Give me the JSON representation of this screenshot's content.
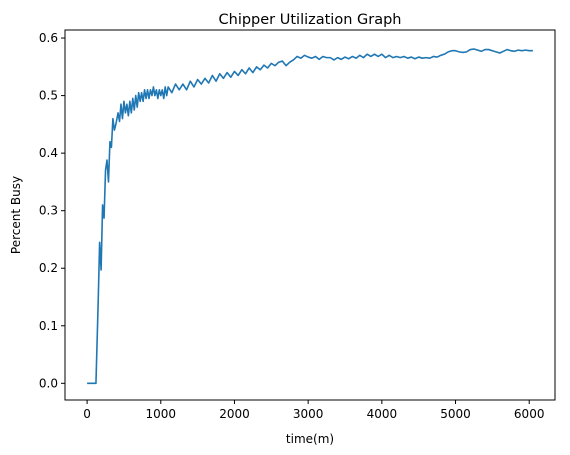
{
  "chart_data": {
    "type": "line",
    "title": "Chipper Utilization Graph",
    "xlabel": "time(m)",
    "ylabel": "Percent Busy",
    "xlim": [
      -300,
      6350
    ],
    "ylim": [
      -0.029,
      0.614
    ],
    "xticks": [
      0,
      1000,
      2000,
      3000,
      4000,
      5000,
      6000
    ],
    "yticks": [
      0.0,
      0.1,
      0.2,
      0.3,
      0.4,
      0.5,
      0.6
    ],
    "xtick_labels": [
      "0",
      "1000",
      "2000",
      "3000",
      "4000",
      "5000",
      "6000"
    ],
    "ytick_labels": [
      "0.0",
      "0.1",
      "0.2",
      "0.3",
      "0.4",
      "0.5",
      "0.6"
    ],
    "grid": false,
    "line_color": "#1f77b4",
    "series": [
      {
        "x": [
          0,
          60,
          120,
          150,
          170,
          190,
          210,
          230,
          250,
          270,
          290,
          310,
          330,
          350,
          370,
          390,
          420,
          440,
          460,
          480,
          500,
          520,
          540,
          560,
          580,
          600,
          620,
          640,
          660,
          680,
          700,
          720,
          740,
          760,
          780,
          800,
          820,
          840,
          860,
          880,
          900,
          920,
          940,
          960,
          980,
          1000,
          1020,
          1040,
          1060,
          1080,
          1100,
          1150,
          1200,
          1250,
          1300,
          1350,
          1400,
          1450,
          1500,
          1550,
          1600,
          1650,
          1700,
          1750,
          1800,
          1850,
          1900,
          1950,
          2000,
          2050,
          2100,
          2150,
          2200,
          2250,
          2300,
          2350,
          2400,
          2450,
          2500,
          2550,
          2600,
          2650,
          2700,
          2750,
          2800,
          2850,
          2900,
          2950,
          3000,
          3050,
          3100,
          3150,
          3200,
          3250,
          3300,
          3350,
          3400,
          3450,
          3500,
          3550,
          3600,
          3650,
          3700,
          3750,
          3800,
          3850,
          3900,
          3950,
          4000,
          4050,
          4100,
          4150,
          4200,
          4250,
          4300,
          4350,
          4400,
          4450,
          4500,
          4550,
          4600,
          4650,
          4700,
          4750,
          4800,
          4850,
          4900,
          4950,
          5000,
          5050,
          5100,
          5150,
          5200,
          5250,
          5300,
          5350,
          5400,
          5450,
          5500,
          5550,
          5600,
          5650,
          5700,
          5750,
          5800,
          5850,
          5900,
          5950,
          6000,
          6050
        ],
        "y": [
          0.0,
          0.0,
          0.0,
          0.14,
          0.245,
          0.197,
          0.31,
          0.287,
          0.37,
          0.388,
          0.35,
          0.42,
          0.41,
          0.46,
          0.44,
          0.45,
          0.47,
          0.455,
          0.485,
          0.46,
          0.49,
          0.47,
          0.485,
          0.465,
          0.49,
          0.47,
          0.495,
          0.475,
          0.5,
          0.48,
          0.505,
          0.49,
          0.505,
          0.49,
          0.51,
          0.495,
          0.51,
          0.495,
          0.51,
          0.5,
          0.515,
          0.5,
          0.51,
          0.495,
          0.51,
          0.5,
          0.51,
          0.495,
          0.515,
          0.5,
          0.515,
          0.505,
          0.52,
          0.51,
          0.52,
          0.51,
          0.525,
          0.515,
          0.528,
          0.52,
          0.53,
          0.522,
          0.535,
          0.525,
          0.538,
          0.53,
          0.54,
          0.532,
          0.542,
          0.535,
          0.545,
          0.538,
          0.548,
          0.54,
          0.55,
          0.545,
          0.553,
          0.548,
          0.556,
          0.552,
          0.558,
          0.56,
          0.552,
          0.558,
          0.562,
          0.568,
          0.565,
          0.57,
          0.567,
          0.565,
          0.568,
          0.563,
          0.568,
          0.566,
          0.566,
          0.562,
          0.566,
          0.563,
          0.567,
          0.564,
          0.568,
          0.565,
          0.57,
          0.566,
          0.572,
          0.568,
          0.572,
          0.568,
          0.572,
          0.566,
          0.57,
          0.566,
          0.568,
          0.566,
          0.568,
          0.565,
          0.567,
          0.564,
          0.567,
          0.565,
          0.566,
          0.565,
          0.568,
          0.567,
          0.57,
          0.572,
          0.576,
          0.578,
          0.578,
          0.576,
          0.575,
          0.576,
          0.58,
          0.581,
          0.579,
          0.577,
          0.58,
          0.58,
          0.578,
          0.576,
          0.574,
          0.577,
          0.58,
          0.578,
          0.577,
          0.579,
          0.578,
          0.579,
          0.578,
          0.578
        ]
      }
    ]
  }
}
